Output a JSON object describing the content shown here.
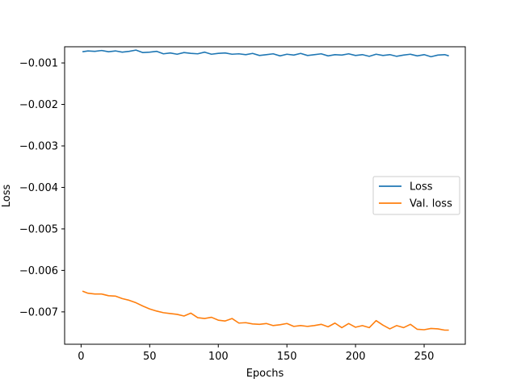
{
  "chart_data": {
    "type": "line",
    "title": "",
    "xlabel": "Epochs",
    "ylabel": "Loss",
    "xlim": [
      -12,
      280
    ],
    "ylim": [
      -0.00778,
      -0.00061
    ],
    "xticks": [
      0,
      50,
      100,
      150,
      200,
      250
    ],
    "xtick_labels": [
      "0",
      "50",
      "100",
      "150",
      "200",
      "250"
    ],
    "yticks": [
      -0.001,
      -0.002,
      -0.003,
      -0.004,
      -0.005,
      -0.006,
      -0.007
    ],
    "ytick_labels": [
      "−0.001",
      "−0.002",
      "−0.003",
      "−0.004",
      "−0.005",
      "−0.006",
      "−0.007"
    ],
    "grid": false,
    "legend_position": "center-right",
    "series": [
      {
        "name": "Loss",
        "color": "#1f77b4",
        "x": [
          1,
          5,
          10,
          15,
          20,
          25,
          30,
          35,
          40,
          45,
          50,
          55,
          60,
          65,
          70,
          75,
          80,
          85,
          90,
          95,
          100,
          105,
          110,
          115,
          120,
          125,
          130,
          135,
          140,
          145,
          150,
          155,
          160,
          165,
          170,
          175,
          180,
          185,
          190,
          195,
          200,
          205,
          210,
          215,
          220,
          225,
          230,
          235,
          240,
          245,
          250,
          255,
          260,
          265,
          268
        ],
        "y": [
          -0.00073,
          -0.00071,
          -0.00072,
          -0.0007,
          -0.00073,
          -0.00071,
          -0.00074,
          -0.00072,
          -0.00069,
          -0.00075,
          -0.00074,
          -0.00072,
          -0.00078,
          -0.00076,
          -0.00079,
          -0.00075,
          -0.00077,
          -0.00078,
          -0.00074,
          -0.00079,
          -0.00077,
          -0.00076,
          -0.00079,
          -0.00078,
          -0.0008,
          -0.00077,
          -0.00082,
          -0.0008,
          -0.00078,
          -0.00083,
          -0.00079,
          -0.00081,
          -0.00077,
          -0.00082,
          -0.0008,
          -0.00078,
          -0.00083,
          -0.0008,
          -0.00081,
          -0.00078,
          -0.00082,
          -0.0008,
          -0.00084,
          -0.00079,
          -0.00082,
          -0.0008,
          -0.00084,
          -0.00081,
          -0.00079,
          -0.00083,
          -0.0008,
          -0.00085,
          -0.00081,
          -0.0008,
          -0.00083
        ]
      },
      {
        "name": "Val. loss",
        "color": "#ff7f0e",
        "x": [
          1,
          5,
          10,
          15,
          20,
          25,
          30,
          35,
          40,
          45,
          50,
          55,
          60,
          65,
          70,
          75,
          80,
          85,
          90,
          95,
          100,
          105,
          110,
          115,
          120,
          125,
          130,
          135,
          140,
          145,
          150,
          155,
          160,
          165,
          170,
          175,
          180,
          185,
          190,
          195,
          200,
          205,
          210,
          215,
          220,
          225,
          230,
          235,
          240,
          245,
          250,
          255,
          260,
          265,
          268
        ],
        "y": [
          -0.0065,
          -0.00655,
          -0.00657,
          -0.00657,
          -0.00661,
          -0.00662,
          -0.00668,
          -0.00672,
          -0.00678,
          -0.00686,
          -0.00693,
          -0.00698,
          -0.00702,
          -0.00704,
          -0.00706,
          -0.0071,
          -0.00703,
          -0.00714,
          -0.00716,
          -0.00713,
          -0.0072,
          -0.00722,
          -0.00716,
          -0.00727,
          -0.00726,
          -0.00729,
          -0.0073,
          -0.00728,
          -0.00733,
          -0.00731,
          -0.00728,
          -0.00735,
          -0.00733,
          -0.00735,
          -0.00733,
          -0.0073,
          -0.00736,
          -0.00727,
          -0.00738,
          -0.00728,
          -0.00737,
          -0.00733,
          -0.00738,
          -0.00721,
          -0.00732,
          -0.00741,
          -0.00733,
          -0.00738,
          -0.0073,
          -0.00742,
          -0.00743,
          -0.0074,
          -0.00741,
          -0.00744,
          -0.00744
        ]
      }
    ]
  }
}
